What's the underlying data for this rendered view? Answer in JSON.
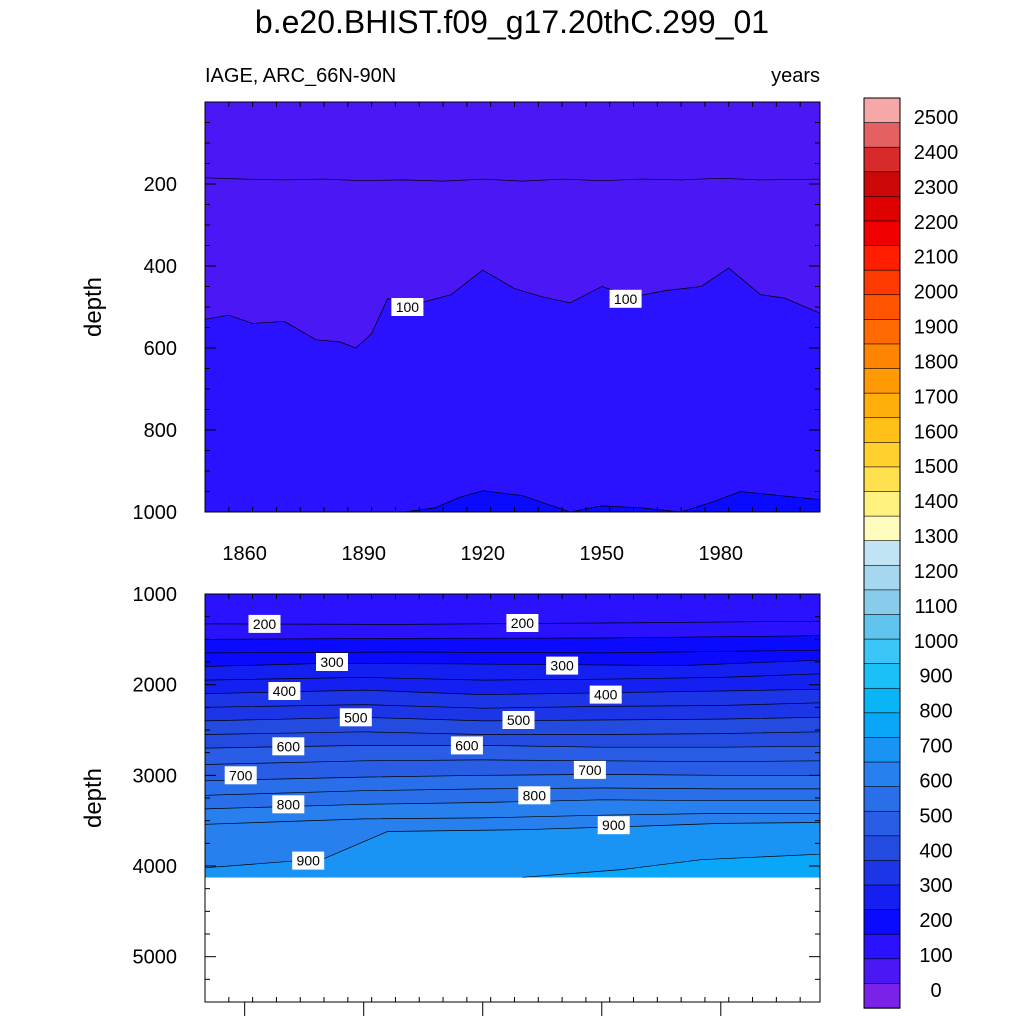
{
  "title": "b.e20.BHIST.f09_g17.20thC.299_01",
  "chart_data": {
    "type": "contour",
    "title": "b.e20.BHIST.f09_g17.20thC.299_01",
    "left_subtitle": "IAGE, ARC_66N-90N",
    "right_subtitle": "years",
    "x_range": [
      1850,
      2005
    ],
    "x_ticks": [
      1860,
      1890,
      1920,
      1950,
      1980
    ],
    "colorbar": {
      "levels": [
        0,
        100,
        200,
        300,
        400,
        500,
        600,
        700,
        800,
        900,
        1000,
        1100,
        1200,
        1300,
        1400,
        1500,
        1600,
        1700,
        1800,
        1900,
        2000,
        2100,
        2200,
        2300,
        2400,
        2500
      ],
      "colors": [
        "#7b22e8",
        "#4b18f5",
        "#2a12ff",
        "#0a0aff",
        "#1420f2",
        "#1c35e6",
        "#244be0",
        "#2a5de5",
        "#2a6fea",
        "#2880ee",
        "#1a94f4",
        "#0aa6f8",
        "#09b4f7",
        "#1cc0f8",
        "#3cc6f7",
        "#5fc5ef",
        "#88cbea",
        "#a5d7ef",
        "#c1e4f4",
        "#fffdbd",
        "#fff27e",
        "#ffe14f",
        "#ffd02e",
        "#ffc018",
        "#ffae0a",
        "#ff9904",
        "#ff8402",
        "#ff6a02",
        "#ff5400",
        "#ff3a00",
        "#ff1e00",
        "#f00000",
        "#df0000",
        "#cc0808",
        "#d82a2a",
        "#e56060",
        "#f6a8a8"
      ]
    },
    "panels": [
      {
        "name": "upper",
        "ylabel": "depth",
        "y_range": [
          0,
          1000
        ],
        "y_ticks": [
          200,
          400,
          600,
          800,
          1000
        ],
        "contour_labels": [
          {
            "text": "100",
            "x": 1901,
            "y": 500
          },
          {
            "text": "100",
            "x": 1956,
            "y": 480
          }
        ],
        "contours": [
          {
            "level": 0,
            "points": [
              [
                1850,
                185
              ],
              [
                1860,
                188
              ],
              [
                1870,
                190
              ],
              [
                1880,
                188
              ],
              [
                1890,
                192
              ],
              [
                1900,
                190
              ],
              [
                1910,
                193
              ],
              [
                1920,
                188
              ],
              [
                1930,
                193
              ],
              [
                1940,
                188
              ],
              [
                1950,
                192
              ],
              [
                1960,
                188
              ],
              [
                1970,
                190
              ],
              [
                1980,
                186
              ],
              [
                1990,
                190
              ],
              [
                2005,
                188
              ]
            ]
          },
          {
            "level": 100,
            "points": [
              [
                1850,
                530
              ],
              [
                1856,
                520
              ],
              [
                1862,
                540
              ],
              [
                1870,
                535
              ],
              [
                1878,
                580
              ],
              [
                1884,
                585
              ],
              [
                1888,
                600
              ],
              [
                1892,
                565
              ],
              [
                1896,
                480
              ],
              [
                1905,
                488
              ],
              [
                1912,
                470
              ],
              [
                1920,
                410
              ],
              [
                1928,
                455
              ],
              [
                1935,
                475
              ],
              [
                1942,
                490
              ],
              [
                1950,
                450
              ],
              [
                1958,
                475
              ],
              [
                1966,
                460
              ],
              [
                1975,
                450
              ],
              [
                1982,
                405
              ],
              [
                1990,
                470
              ],
              [
                1996,
                478
              ],
              [
                2005,
                515
              ]
            ]
          },
          {
            "level": 200,
            "points": [
              [
                1850,
                1000
              ],
              [
                1900,
                1000
              ],
              [
                1908,
                990
              ],
              [
                1914,
                965
              ],
              [
                1920,
                948
              ],
              [
                1930,
                960
              ],
              [
                1942,
                1000
              ],
              [
                1950,
                985
              ],
              [
                1960,
                990
              ],
              [
                1970,
                1000
              ],
              [
                1978,
                975
              ],
              [
                1985,
                950
              ],
              [
                1995,
                960
              ],
              [
                2005,
                970
              ],
              [
                2005,
                1000
              ]
            ]
          }
        ]
      },
      {
        "name": "lower",
        "ylabel": "depth",
        "y_range": [
          1000,
          5500
        ],
        "y_ticks": [
          1000,
          2000,
          3000,
          4000,
          5000
        ],
        "data_bottom": 4125,
        "contour_labels": [
          {
            "text": "200",
            "x": 1865,
            "y": 1330
          },
          {
            "text": "200",
            "x": 1930,
            "y": 1320
          },
          {
            "text": "300",
            "x": 1882,
            "y": 1750
          },
          {
            "text": "300",
            "x": 1940,
            "y": 1790
          },
          {
            "text": "400",
            "x": 1870,
            "y": 2070
          },
          {
            "text": "400",
            "x": 1951,
            "y": 2110
          },
          {
            "text": "500",
            "x": 1888,
            "y": 2360
          },
          {
            "text": "500",
            "x": 1929,
            "y": 2390
          },
          {
            "text": "600",
            "x": 1871,
            "y": 2680
          },
          {
            "text": "600",
            "x": 1916,
            "y": 2670
          },
          {
            "text": "700",
            "x": 1859,
            "y": 3000
          },
          {
            "text": "700",
            "x": 1947,
            "y": 2940
          },
          {
            "text": "800",
            "x": 1871,
            "y": 3320
          },
          {
            "text": "800",
            "x": 1933,
            "y": 3220
          },
          {
            "text": "900",
            "x": 1876,
            "y": 3940
          },
          {
            "text": "900",
            "x": 1953,
            "y": 3550
          }
        ],
        "contours": [
          {
            "level": 100,
            "points": [
              [
                1850,
                1000
              ],
              [
                1890,
                995
              ],
              [
                1930,
                1000
              ],
              [
                1970,
                998
              ],
              [
                2005,
                1000
              ]
            ]
          },
          {
            "level": 150,
            "points": [
              [
                1850,
                1330
              ],
              [
                1900,
                1335
              ],
              [
                1950,
                1320
              ],
              [
                2005,
                1300
              ]
            ]
          },
          {
            "level": 200,
            "points": [
              [
                1850,
                1500
              ],
              [
                1900,
                1490
              ],
              [
                1950,
                1485
              ],
              [
                2005,
                1460
              ]
            ]
          },
          {
            "level": 250,
            "points": [
              [
                1850,
                1650
              ],
              [
                1900,
                1640
              ],
              [
                1950,
                1650
              ],
              [
                2005,
                1620
              ]
            ]
          },
          {
            "level": 300,
            "points": [
              [
                1850,
                1800
              ],
              [
                1880,
                1765
              ],
              [
                1910,
                1770
              ],
              [
                1940,
                1780
              ],
              [
                1970,
                1790
              ],
              [
                2005,
                1730
              ]
            ]
          },
          {
            "level": 350,
            "points": [
              [
                1850,
                1950
              ],
              [
                1890,
                1920
              ],
              [
                1920,
                1950
              ],
              [
                1950,
                1940
              ],
              [
                1980,
                1920
              ],
              [
                2005,
                1880
              ]
            ]
          },
          {
            "level": 400,
            "points": [
              [
                1850,
                2100
              ],
              [
                1890,
                2060
              ],
              [
                1920,
                2110
              ],
              [
                1950,
                2090
              ],
              [
                1980,
                2070
              ],
              [
                2005,
                2050
              ]
            ]
          },
          {
            "level": 450,
            "points": [
              [
                1850,
                2250
              ],
              [
                1890,
                2220
              ],
              [
                1920,
                2260
              ],
              [
                1950,
                2240
              ],
              [
                1980,
                2230
              ],
              [
                2005,
                2200
              ]
            ]
          },
          {
            "level": 500,
            "points": [
              [
                1850,
                2400
              ],
              [
                1890,
                2360
              ],
              [
                1920,
                2400
              ],
              [
                1950,
                2390
              ],
              [
                1980,
                2380
              ],
              [
                2005,
                2360
              ]
            ]
          },
          {
            "level": 550,
            "points": [
              [
                1850,
                2550
              ],
              [
                1890,
                2520
              ],
              [
                1920,
                2550
              ],
              [
                1950,
                2550
              ],
              [
                1980,
                2540
              ],
              [
                2005,
                2520
              ]
            ]
          },
          {
            "level": 600,
            "points": [
              [
                1850,
                2700
              ],
              [
                1890,
                2670
              ],
              [
                1920,
                2670
              ],
              [
                1950,
                2690
              ],
              [
                1980,
                2690
              ],
              [
                2005,
                2680
              ]
            ]
          },
          {
            "level": 650,
            "points": [
              [
                1850,
                2880
              ],
              [
                1890,
                2840
              ],
              [
                1920,
                2830
              ],
              [
                1950,
                2840
              ],
              [
                1980,
                2850
              ],
              [
                2005,
                2840
              ]
            ]
          },
          {
            "level": 700,
            "points": [
              [
                1850,
                3060
              ],
              [
                1890,
                3020
              ],
              [
                1920,
                3000
              ],
              [
                1950,
                2990
              ],
              [
                1980,
                3000
              ],
              [
                2005,
                3000
              ]
            ]
          },
          {
            "level": 750,
            "points": [
              [
                1850,
                3220
              ],
              [
                1890,
                3170
              ],
              [
                1920,
                3150
              ],
              [
                1950,
                3140
              ],
              [
                1980,
                3150
              ],
              [
                2005,
                3150
              ]
            ]
          },
          {
            "level": 800,
            "points": [
              [
                1850,
                3370
              ],
              [
                1890,
                3320
              ],
              [
                1920,
                3300
              ],
              [
                1950,
                3270
              ],
              [
                1980,
                3280
              ],
              [
                2005,
                3280
              ]
            ]
          },
          {
            "level": 850,
            "points": [
              [
                1850,
                3540
              ],
              [
                1890,
                3480
              ],
              [
                1920,
                3470
              ],
              [
                1950,
                3440
              ],
              [
                1980,
                3420
              ],
              [
                2005,
                3420
              ]
            ]
          },
          {
            "level": 900,
            "points": [
              [
                1850,
                4020
              ],
              [
                1880,
                3920
              ],
              [
                1896,
                3620
              ],
              [
                1930,
                3600
              ],
              [
                1960,
                3560
              ],
              [
                1980,
                3530
              ],
              [
                2005,
                3520
              ]
            ]
          },
          {
            "level": 1000,
            "points": [
              [
                1930,
                4125
              ],
              [
                1955,
                4040
              ],
              [
                1975,
                3930
              ],
              [
                2005,
                3870
              ]
            ]
          }
        ]
      }
    ]
  }
}
